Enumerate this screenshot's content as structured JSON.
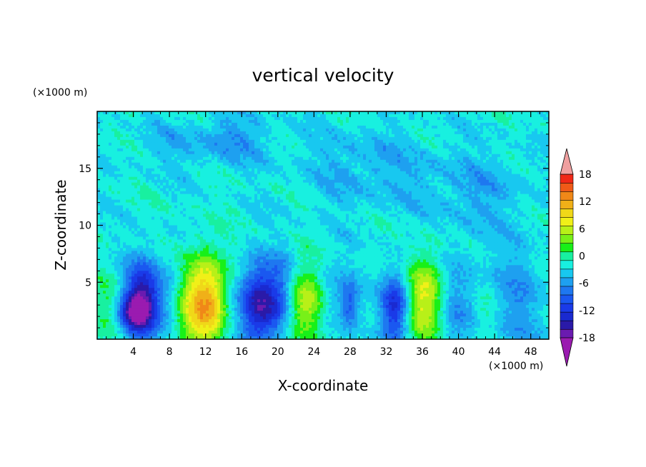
{
  "chart_data": {
    "type": "heatmap",
    "title": "vertical velocity",
    "xlabel": "X-coordinate",
    "ylabel": "Z-coordinate",
    "x_unit": "(×1000 m)",
    "z_unit": "(×1000 m)",
    "xlim": [
      0,
      50
    ],
    "ylim": [
      0,
      20
    ],
    "x_ticks": [
      4,
      8,
      12,
      16,
      20,
      24,
      28,
      32,
      36,
      40,
      44,
      48
    ],
    "y_ticks": [
      5,
      10,
      15
    ],
    "colorbar": {
      "levels": [
        -20,
        -18,
        -16,
        -14,
        -12,
        -10,
        -8,
        -6,
        -4,
        -2,
        0,
        2,
        4,
        6,
        8,
        10,
        12,
        14,
        16,
        18,
        20
      ],
      "tick_labels": [
        "18",
        "12",
        "6",
        "0",
        "-6",
        "-12",
        "-18"
      ],
      "tick_values": [
        18,
        12,
        6,
        0,
        -6,
        -12,
        -18
      ],
      "colors": [
        "#9a1bb0",
        "#6a1bb0",
        "#2a1aa8",
        "#1a2ad0",
        "#1a3ae8",
        "#1a58f0",
        "#1e78f0",
        "#1ea0f0",
        "#18c8f0",
        "#18f0e0",
        "#18f0a0",
        "#18f018",
        "#78f018",
        "#b8f018",
        "#f0f018",
        "#f0d818",
        "#f0b018",
        "#f08818",
        "#f05a18",
        "#f02818",
        "#f0a0a0"
      ],
      "extend": "both"
    },
    "features": [
      {
        "x": 5.0,
        "z": 3.5,
        "value": -14,
        "sx": 1.3,
        "sz": 2.3
      },
      {
        "x": 4.0,
        "z": 2.2,
        "value": -10,
        "sx": 1.2,
        "sz": 1.2
      },
      {
        "x": 12.0,
        "z": 3.2,
        "value": 16,
        "sx": 2.0,
        "sz": 2.8
      },
      {
        "x": 18.0,
        "z": 3.0,
        "value": -15,
        "sx": 1.7,
        "sz": 2.5
      },
      {
        "x": 23.0,
        "z": 2.8,
        "value": 9,
        "sx": 1.6,
        "sz": 2.3
      },
      {
        "x": 28.0,
        "z": 3.0,
        "value": -7,
        "sx": 0.7,
        "sz": 1.5
      },
      {
        "x": 33.0,
        "z": 2.8,
        "value": -12,
        "sx": 1.1,
        "sz": 2.2
      },
      {
        "x": 36.5,
        "z": 3.6,
        "value": 11,
        "sx": 1.6,
        "sz": 2.7
      },
      {
        "x": 8.0,
        "z": 4.0,
        "value": -4,
        "sx": 1.3,
        "sz": 2.5
      },
      {
        "x": 14.5,
        "z": 3.5,
        "value": -3,
        "sx": 0.9,
        "sz": 2.5
      },
      {
        "x": 20.5,
        "z": 4.0,
        "value": -4,
        "sx": 1.0,
        "sz": 2.5
      },
      {
        "x": 26.0,
        "z": 3.5,
        "value": -4,
        "sx": 1.2,
        "sz": 2.5
      },
      {
        "x": 39.5,
        "z": 3.5,
        "value": -5,
        "sx": 1.8,
        "sz": 3.0
      },
      {
        "x": 43.0,
        "z": 2.5,
        "value": 2,
        "sx": 0.8,
        "sz": 1.3
      },
      {
        "x": 46.5,
        "z": 3.5,
        "value": -4,
        "sx": 2.0,
        "sz": 3.5
      },
      {
        "x": 1.0,
        "z": 3.0,
        "value": 3,
        "sx": 1.0,
        "sz": 2.0
      },
      {
        "x": 15.0,
        "z": 17.5,
        "value": -4,
        "sx": 3.0,
        "sz": 1.5
      },
      {
        "x": 30.0,
        "z": 15.0,
        "value": -3,
        "sx": 5.0,
        "sz": 2.5
      },
      {
        "x": 42.0,
        "z": 13.0,
        "value": -3,
        "sx": 4.0,
        "sz": 2.5
      },
      {
        "x": 8.0,
        "z": 17.0,
        "value": -2,
        "sx": 3.0,
        "sz": 1.5
      }
    ]
  }
}
